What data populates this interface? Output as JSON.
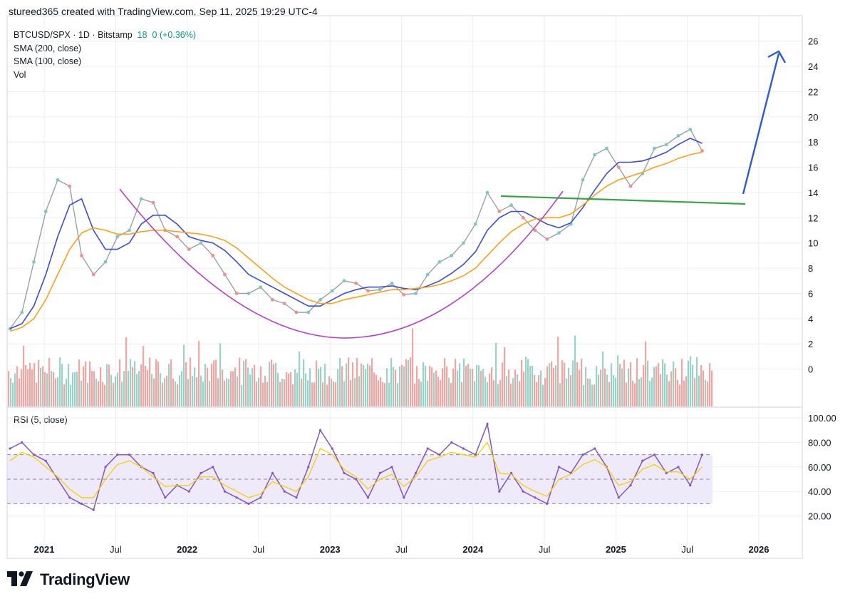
{
  "header": {
    "text": "stureed365 created with TradingView.com, Sep 11, 2025 19:29 UTC-4"
  },
  "legend": {
    "symbol": "BTCUSD/SPX · 1D · Bitstamp",
    "price": "18",
    "change": "0 (+0.36%)",
    "sma200": "SMA (200, close)",
    "sma100": "SMA (100, close)",
    "vol": "Vol"
  },
  "rsi_panel": {
    "label": "RSI (5, close)"
  },
  "footer": {
    "brand": "TradingView",
    "logo_icon": "tradingview-logo-icon"
  },
  "colors": {
    "up": "#7fc7b8",
    "down": "#f0908a",
    "sma200": "#f7a21b",
    "sma100": "#3d4bd6",
    "cup_curve": "#b342c6",
    "neckline": "#3aa34a",
    "arrow": "#2a5bd7",
    "rsi_line": "#7e57c2",
    "rsi_ma": "#f5d000",
    "rsi_band": "#efeaf9",
    "grid": "#e9edf2"
  },
  "chart_data": [
    {
      "type": "line",
      "title": "BTCUSD/SPX",
      "x_ticks": [
        "2021",
        "Jul",
        "2022",
        "Jul",
        "2023",
        "Jul",
        "2024",
        "Jul",
        "2025",
        "Jul",
        "2026"
      ],
      "y_ticks": [
        "26",
        "24",
        "22",
        "20",
        "18",
        "16",
        "14",
        "12",
        "10",
        "8",
        "6",
        "4",
        "2",
        "0"
      ],
      "ylim": [
        -2,
        27
      ],
      "x": [
        "2020-11",
        "2020-12",
        "2021-01",
        "2021-02",
        "2021-03",
        "2021-04",
        "2021-05",
        "2021-06",
        "2021-07",
        "2021-08",
        "2021-09",
        "2021-10",
        "2021-11",
        "2021-12",
        "2022-01",
        "2022-02",
        "2022-03",
        "2022-04",
        "2022-05",
        "2022-06",
        "2022-07",
        "2022-08",
        "2022-09",
        "2022-10",
        "2022-11",
        "2022-12",
        "2023-01",
        "2023-02",
        "2023-03",
        "2023-04",
        "2023-05",
        "2023-06",
        "2023-07",
        "2023-08",
        "2023-09",
        "2023-10",
        "2023-11",
        "2023-12",
        "2024-01",
        "2024-02",
        "2024-03",
        "2024-04",
        "2024-05",
        "2024-06",
        "2024-07",
        "2024-08",
        "2024-09",
        "2024-10",
        "2024-11",
        "2024-12",
        "2025-01",
        "2025-02",
        "2025-03",
        "2025-04",
        "2025-05",
        "2025-06",
        "2025-07",
        "2025-08",
        "2025-09"
      ],
      "series": [
        {
          "values": [
            3.2,
            4.5,
            8.5,
            12.5,
            15.0,
            14.5,
            9.0,
            7.5,
            8.5,
            10.5,
            11.0,
            13.5,
            13.2,
            11.0,
            10.5,
            9.5,
            10.0,
            9.0,
            7.5,
            6.0,
            6.0,
            6.5,
            5.5,
            5.2,
            4.5,
            4.5,
            5.5,
            6.2,
            7.0,
            6.8,
            6.2,
            6.3,
            6.8,
            5.9,
            6.0,
            7.5,
            8.5,
            9.0,
            10.0,
            11.5,
            14.0,
            12.5,
            13.0,
            12.0,
            11.0,
            10.3,
            10.8,
            11.5,
            15.0,
            17.0,
            17.5,
            16.0,
            14.5,
            15.5,
            17.5,
            17.8,
            18.5,
            19.0,
            17.3
          ]
        },
        {
          "values": [
            3.2,
            3.6,
            5.0,
            7.5,
            10.5,
            13.0,
            13.5,
            11.0,
            9.5,
            9.5,
            10.0,
            11.5,
            12.2,
            12.2,
            11.5,
            10.5,
            10.2,
            10.0,
            9.4,
            8.5,
            7.5,
            7.0,
            6.5,
            6.0,
            5.5,
            5.0,
            5.0,
            5.5,
            6.0,
            6.3,
            6.5,
            6.5,
            6.6,
            6.4,
            6.3,
            6.6,
            7.0,
            7.6,
            8.3,
            9.3,
            11.0,
            12.0,
            12.5,
            12.5,
            12.0,
            11.5,
            11.2,
            11.6,
            12.8,
            14.2,
            15.5,
            16.4,
            16.4,
            16.5,
            16.8,
            17.2,
            17.8,
            18.3,
            17.9
          ]
        },
        {
          "values": [
            3.0,
            3.3,
            4.0,
            5.5,
            7.5,
            9.5,
            10.8,
            11.2,
            11.0,
            10.7,
            10.7,
            10.9,
            11.0,
            11.0,
            10.9,
            10.8,
            10.7,
            10.5,
            10.2,
            9.6,
            8.8,
            8.0,
            7.2,
            6.5,
            6.0,
            5.5,
            5.2,
            5.2,
            5.5,
            5.7,
            5.9,
            6.1,
            6.3,
            6.3,
            6.4,
            6.5,
            6.7,
            7.0,
            7.4,
            8.0,
            9.0,
            10.0,
            10.9,
            11.5,
            11.9,
            12.0,
            12.0,
            12.3,
            13.0,
            13.8,
            14.5,
            15.0,
            15.3,
            15.6,
            16.0,
            16.3,
            16.7,
            17.0,
            17.2
          ]
        }
      ]
    },
    {
      "type": "line",
      "title": "RSI (5, close)",
      "y_ticks": [
        "100.00",
        "80.00",
        "60.00",
        "40.00",
        "20.00"
      ],
      "ylim": [
        0,
        100
      ],
      "levels": [
        70,
        50,
        30
      ],
      "series": [
        {
          "values": [
            75,
            80,
            70,
            65,
            50,
            35,
            30,
            25,
            60,
            70,
            70,
            60,
            55,
            35,
            45,
            40,
            55,
            60,
            40,
            35,
            30,
            35,
            55,
            40,
            35,
            60,
            90,
            75,
            55,
            50,
            35,
            55,
            60,
            35,
            55,
            75,
            70,
            80,
            75,
            70,
            95,
            40,
            55,
            40,
            35,
            30,
            60,
            55,
            70,
            75,
            60,
            35,
            45,
            65,
            70,
            55,
            60,
            45,
            70
          ]
        },
        {
          "values": [
            65,
            72,
            68,
            60,
            52,
            42,
            35,
            35,
            50,
            62,
            65,
            60,
            52,
            44,
            45,
            45,
            52,
            52,
            45,
            40,
            35,
            38,
            48,
            44,
            40,
            52,
            75,
            70,
            58,
            52,
            42,
            50,
            54,
            44,
            52,
            65,
            68,
            72,
            70,
            68,
            80,
            55,
            54,
            45,
            40,
            36,
            50,
            54,
            62,
            66,
            60,
            45,
            48,
            58,
            62,
            56,
            56,
            50,
            60
          ]
        }
      ]
    }
  ]
}
